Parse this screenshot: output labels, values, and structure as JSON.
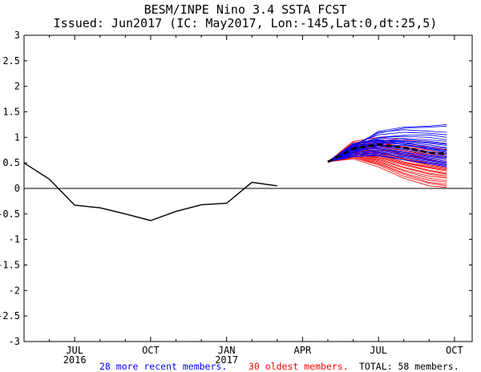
{
  "chart_data": {
    "type": "line",
    "title": "BESM/INPE Nino 3.4 SSTA FCST",
    "subtitle": "Issued: Jun2017 (IC: May2017, Lon:-145,Lat:0,dt:25,5)",
    "xlabel": "",
    "ylabel": "",
    "ylim": [
      -3,
      3
    ],
    "y_ticks": [
      "3",
      "2.5",
      "2",
      "1.5",
      "1",
      "0.5",
      "0",
      "-0.5",
      "-1",
      "-1.5",
      "-2",
      "-2.5",
      "-3"
    ],
    "x_ticks": [
      {
        "label": "JUL",
        "year": "2016",
        "x": 2
      },
      {
        "label": "OCT",
        "year": "",
        "x": 5
      },
      {
        "label": "JAN",
        "year": "2017",
        "x": 8
      },
      {
        "label": "APR",
        "year": "",
        "x": 11
      },
      {
        "label": "JUL",
        "year": "",
        "x": 14
      },
      {
        "label": "OCT",
        "year": "",
        "x": 17
      }
    ],
    "xlim": [
      0,
      17.7
    ],
    "zero_line": true,
    "series": [
      {
        "name": "observed",
        "color": "#000000",
        "points": [
          [
            0,
            0.5
          ],
          [
            1,
            0.18
          ],
          [
            2,
            -0.33
          ],
          [
            3,
            -0.38
          ],
          [
            4,
            -0.5
          ],
          [
            5,
            -0.63
          ],
          [
            6,
            -0.45
          ],
          [
            7,
            -0.32
          ],
          [
            8,
            -0.29
          ],
          [
            9,
            0.12
          ],
          [
            10,
            0.05
          ]
        ]
      },
      {
        "name": "ensemble mean",
        "color": "#000000",
        "dashed": true,
        "points": [
          [
            12,
            0.52
          ],
          [
            13,
            0.78
          ],
          [
            14,
            0.86
          ],
          [
            15,
            0.8
          ],
          [
            16,
            0.7
          ],
          [
            16.7,
            0.68
          ]
        ]
      }
    ],
    "ensemble": {
      "start": [
        12,
        0.52
      ],
      "x": [
        12,
        13,
        14,
        15,
        16,
        16.7
      ],
      "recent_color": "#0000ff",
      "oldest_color": "#ff0000",
      "recent_members": [
        [
          0.52,
          0.86,
          1.05,
          1.1,
          1.08,
          1.05
        ],
        [
          0.52,
          0.84,
          1.0,
          1.02,
          1.0,
          0.95
        ],
        [
          0.52,
          0.82,
          0.95,
          0.93,
          0.9,
          0.86
        ],
        [
          0.52,
          0.8,
          0.92,
          0.9,
          0.85,
          0.8
        ],
        [
          0.52,
          0.78,
          0.9,
          0.86,
          0.78,
          0.72
        ],
        [
          0.52,
          0.76,
          0.86,
          0.8,
          0.72,
          0.68
        ],
        [
          0.52,
          0.74,
          0.82,
          0.76,
          0.66,
          0.62
        ],
        [
          0.52,
          0.72,
          0.8,
          0.72,
          0.62,
          0.58
        ],
        [
          0.52,
          0.7,
          0.76,
          0.68,
          0.6,
          0.55
        ],
        [
          0.52,
          0.68,
          0.72,
          0.64,
          0.56,
          0.5
        ],
        [
          0.52,
          0.66,
          0.7,
          0.6,
          0.52,
          0.46
        ],
        [
          0.52,
          0.64,
          0.66,
          0.56,
          0.48,
          0.42
        ],
        [
          0.52,
          0.8,
          1.12,
          1.2,
          1.22,
          1.25
        ],
        [
          0.52,
          0.82,
          1.08,
          1.18,
          1.2,
          1.22
        ],
        [
          0.52,
          0.84,
          1.1,
          1.15,
          1.12,
          1.1
        ],
        [
          0.52,
          0.8,
          1.0,
          1.04,
          1.05,
          1.0
        ],
        [
          0.52,
          0.78,
          0.98,
          0.98,
          0.95,
          0.92
        ],
        [
          0.52,
          0.76,
          0.94,
          0.96,
          0.92,
          0.88
        ],
        [
          0.52,
          0.74,
          0.9,
          0.92,
          0.88,
          0.84
        ],
        [
          0.52,
          0.72,
          0.88,
          0.88,
          0.82,
          0.78
        ],
        [
          0.52,
          0.7,
          0.84,
          0.84,
          0.78,
          0.75
        ],
        [
          0.52,
          0.86,
          0.96,
          0.9,
          0.8,
          0.74
        ],
        [
          0.52,
          0.88,
          0.94,
          0.86,
          0.76,
          0.7
        ],
        [
          0.52,
          0.78,
          0.84,
          0.78,
          0.7,
          0.64
        ],
        [
          0.52,
          0.74,
          0.78,
          0.7,
          0.64,
          0.6
        ],
        [
          0.52,
          0.7,
          0.74,
          0.66,
          0.58,
          0.52
        ],
        [
          0.52,
          0.66,
          0.68,
          0.62,
          0.54,
          0.48
        ],
        [
          0.52,
          0.62,
          0.64,
          0.56,
          0.5,
          0.44
        ]
      ],
      "oldest_members": [
        [
          0.52,
          0.9,
          0.95,
          0.9,
          0.85,
          0.8
        ],
        [
          0.52,
          0.86,
          0.9,
          0.82,
          0.75,
          0.7
        ],
        [
          0.52,
          0.82,
          0.85,
          0.78,
          0.68,
          0.62
        ],
        [
          0.52,
          0.78,
          0.8,
          0.7,
          0.6,
          0.55
        ],
        [
          0.52,
          0.75,
          0.75,
          0.65,
          0.55,
          0.5
        ],
        [
          0.52,
          0.72,
          0.7,
          0.58,
          0.48,
          0.42
        ],
        [
          0.52,
          0.7,
          0.66,
          0.52,
          0.42,
          0.36
        ],
        [
          0.52,
          0.68,
          0.62,
          0.48,
          0.36,
          0.3
        ],
        [
          0.52,
          0.66,
          0.58,
          0.42,
          0.3,
          0.25
        ],
        [
          0.52,
          0.64,
          0.54,
          0.36,
          0.24,
          0.2
        ],
        [
          0.52,
          0.62,
          0.5,
          0.3,
          0.16,
          0.12
        ],
        [
          0.52,
          0.6,
          0.46,
          0.24,
          0.1,
          0.05
        ],
        [
          0.52,
          0.58,
          0.42,
          0.2,
          0.05,
          0.02
        ],
        [
          0.52,
          0.92,
          1.0,
          0.95,
          0.92,
          0.88
        ],
        [
          0.52,
          0.88,
          0.92,
          0.86,
          0.8,
          0.76
        ],
        [
          0.52,
          0.84,
          0.88,
          0.8,
          0.72,
          0.66
        ],
        [
          0.52,
          0.8,
          0.82,
          0.74,
          0.64,
          0.58
        ],
        [
          0.52,
          0.76,
          0.78,
          0.68,
          0.58,
          0.52
        ],
        [
          0.52,
          0.74,
          0.72,
          0.6,
          0.5,
          0.46
        ],
        [
          0.52,
          0.7,
          0.68,
          0.56,
          0.44,
          0.38
        ],
        [
          0.52,
          0.68,
          0.64,
          0.5,
          0.4,
          0.34
        ],
        [
          0.52,
          0.66,
          0.6,
          0.46,
          0.34,
          0.28
        ],
        [
          0.52,
          0.64,
          0.56,
          0.4,
          0.28,
          0.22
        ],
        [
          0.52,
          0.62,
          0.52,
          0.34,
          0.2,
          0.15
        ],
        [
          0.52,
          0.6,
          0.48,
          0.28,
          0.12,
          0.08
        ],
        [
          0.52,
          0.86,
          0.84,
          0.74,
          0.66,
          0.62
        ],
        [
          0.52,
          0.82,
          0.78,
          0.66,
          0.56,
          0.5
        ],
        [
          0.52,
          0.78,
          0.72,
          0.58,
          0.46,
          0.4
        ],
        [
          0.52,
          0.74,
          0.66,
          0.52,
          0.4,
          0.34
        ],
        [
          0.52,
          0.7,
          0.6,
          0.46,
          0.34,
          0.28
        ]
      ]
    }
  },
  "footer": {
    "recent_label": "28 more recent members.",
    "recent_color": "#0000ff",
    "oldest_label": "30 oldest members.",
    "oldest_color": "#ff0000",
    "total_label": "TOTAL: 58 members.",
    "total_color": "#000000"
  }
}
